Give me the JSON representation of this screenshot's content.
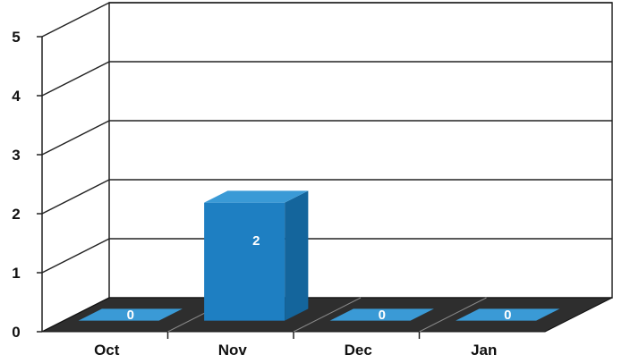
{
  "chart_data": {
    "type": "bar",
    "style": "3d",
    "categories": [
      "Oct",
      "Nov",
      "Dec",
      "Jan"
    ],
    "values": [
      0,
      2,
      0,
      0
    ],
    "data_labels": [
      "0",
      "2",
      "0",
      "0"
    ],
    "ylim": [
      0,
      5
    ],
    "yticks": [
      "0",
      "1",
      "2",
      "3",
      "4",
      "5"
    ],
    "grid": true,
    "legend": "none",
    "colors": {
      "bar_front": "#1e7fc2",
      "bar_top": "#3a9ad6",
      "bar_side": "#14659c",
      "floor": "#2e2e2e",
      "grid": "#222222",
      "text": "#111111"
    }
  }
}
